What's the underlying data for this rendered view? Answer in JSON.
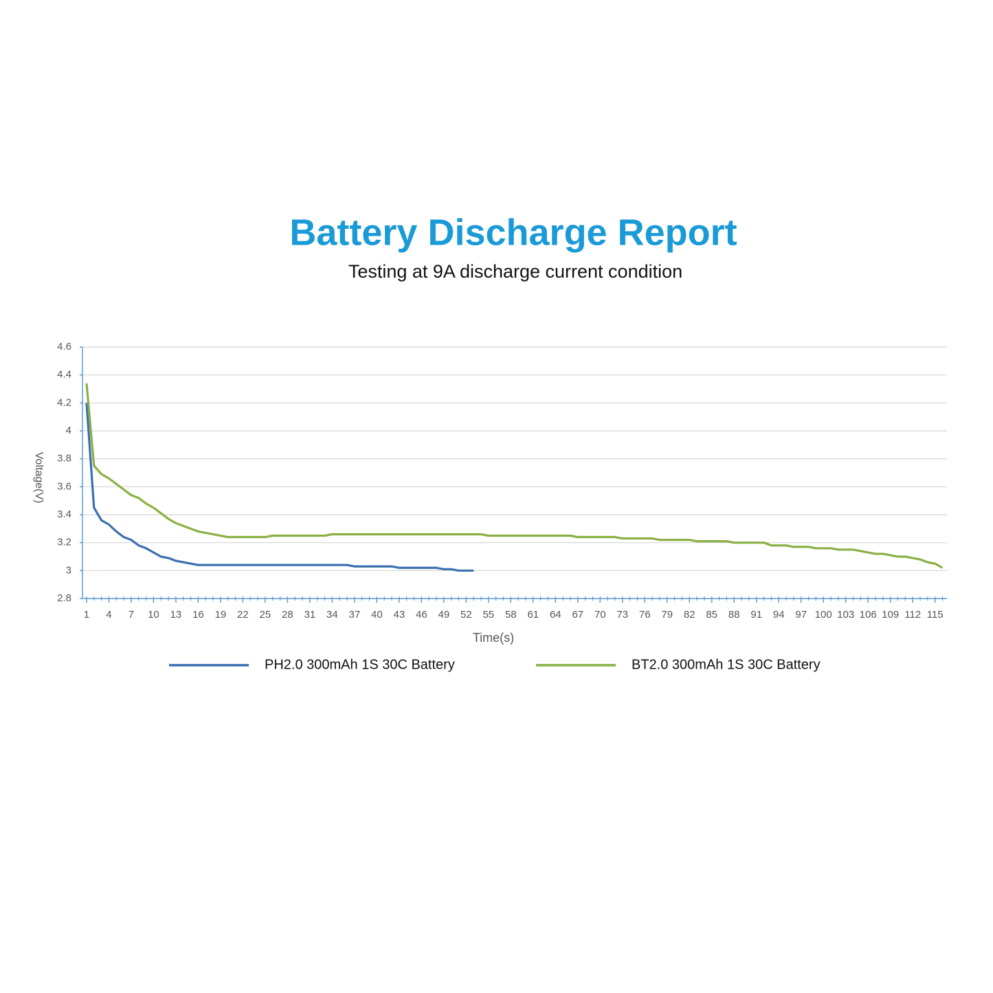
{
  "chart_data": {
    "type": "line",
    "title": "Battery Discharge Report",
    "subtitle": "Testing at 9A discharge current condition",
    "x_label": "Time(s)",
    "y_label": "Voltage(V)",
    "x": [
      1,
      2,
      3,
      4,
      5,
      6,
      7,
      8,
      9,
      10,
      11,
      12,
      13,
      14,
      15,
      16,
      17,
      18,
      19,
      20,
      21,
      22,
      23,
      24,
      25,
      26,
      27,
      28,
      29,
      30,
      31,
      32,
      33,
      34,
      35,
      36,
      37,
      38,
      39,
      40,
      41,
      42,
      43,
      44,
      45,
      46,
      47,
      48,
      49,
      50,
      51,
      52,
      53,
      54,
      55,
      56,
      57,
      58,
      59,
      60,
      61,
      62,
      63,
      64,
      65,
      66,
      67,
      68,
      69,
      70,
      71,
      72,
      73,
      74,
      75,
      76,
      77,
      78,
      79,
      80,
      81,
      82,
      83,
      84,
      85,
      86,
      87,
      88,
      89,
      90,
      91,
      92,
      93,
      94,
      95,
      96,
      97,
      98,
      99,
      100,
      101,
      102,
      103,
      104,
      105,
      106,
      107,
      108,
      109,
      110,
      111,
      112,
      113,
      114,
      115,
      116
    ],
    "xlim": [
      0.45,
      116.6
    ],
    "xticks": [
      1,
      4,
      7,
      10,
      13,
      16,
      19,
      22,
      25,
      28,
      31,
      34,
      37,
      40,
      43,
      46,
      49,
      52,
      55,
      58,
      61,
      64,
      67,
      70,
      73,
      76,
      79,
      82,
      85,
      88,
      91,
      94,
      97,
      100,
      103,
      106,
      109,
      112,
      115
    ],
    "ylim": [
      2.8,
      4.6
    ],
    "yticks": [
      2.8,
      3,
      3.2,
      3.4,
      3.6,
      3.8,
      4,
      4.2,
      4.4,
      4.6
    ],
    "grid": true,
    "legend": "bottom",
    "series": [
      {
        "name": "PH2.0 300mAh 1S 30C Battery",
        "color": "#3a6fb0",
        "values": [
          4.2,
          3.45,
          3.36,
          3.33,
          3.28,
          3.24,
          3.22,
          3.18,
          3.16,
          3.13,
          3.1,
          3.09,
          3.07,
          3.06,
          3.05,
          3.04,
          3.04,
          3.04,
          3.04,
          3.04,
          3.04,
          3.04,
          3.04,
          3.04,
          3.04,
          3.04,
          3.04,
          3.04,
          3.04,
          3.04,
          3.04,
          3.04,
          3.04,
          3.04,
          3.04,
          3.04,
          3.03,
          3.03,
          3.03,
          3.03,
          3.03,
          3.03,
          3.02,
          3.02,
          3.02,
          3.02,
          3.02,
          3.02,
          3.01,
          3.01,
          3,
          3,
          3,
          null,
          null,
          null,
          null,
          null,
          null,
          null,
          null,
          null,
          null,
          null,
          null,
          null,
          null,
          null,
          null,
          null,
          null,
          null,
          null,
          null,
          null,
          null,
          null,
          null,
          null,
          null,
          null,
          null,
          null,
          null,
          null,
          null,
          null,
          null,
          null,
          null,
          null,
          null,
          null,
          null,
          null,
          null,
          null,
          null,
          null,
          null,
          null,
          null,
          null,
          null,
          null,
          null,
          null,
          null,
          null,
          null,
          null,
          null,
          null,
          null,
          null,
          null
        ]
      },
      {
        "name": "BT2.0 300mAh 1S 30C Battery",
        "color": "#8ab043",
        "values": [
          4.34,
          3.75,
          3.69,
          3.66,
          3.62,
          3.58,
          3.54,
          3.52,
          3.48,
          3.45,
          3.41,
          3.37,
          3.34,
          3.32,
          3.3,
          3.28,
          3.27,
          3.26,
          3.25,
          3.24,
          3.24,
          3.24,
          3.24,
          3.24,
          3.24,
          3.25,
          3.25,
          3.25,
          3.25,
          3.25,
          3.25,
          3.25,
          3.25,
          3.26,
          3.26,
          3.26,
          3.26,
          3.26,
          3.26,
          3.26,
          3.26,
          3.26,
          3.26,
          3.26,
          3.26,
          3.26,
          3.26,
          3.26,
          3.26,
          3.26,
          3.26,
          3.26,
          3.26,
          3.26,
          3.25,
          3.25,
          3.25,
          3.25,
          3.25,
          3.25,
          3.25,
          3.25,
          3.25,
          3.25,
          3.25,
          3.25,
          3.24,
          3.24,
          3.24,
          3.24,
          3.24,
          3.24,
          3.23,
          3.23,
          3.23,
          3.23,
          3.23,
          3.22,
          3.22,
          3.22,
          3.22,
          3.22,
          3.21,
          3.21,
          3.21,
          3.21,
          3.21,
          3.2,
          3.2,
          3.2,
          3.2,
          3.2,
          3.18,
          3.18,
          3.18,
          3.17,
          3.17,
          3.17,
          3.16,
          3.16,
          3.16,
          3.15,
          3.15,
          3.15,
          3.14,
          3.13,
          3.12,
          3.12,
          3.11,
          3.1,
          3.1,
          3.09,
          3.08,
          3.06,
          3.05,
          3.02
        ]
      }
    ]
  }
}
